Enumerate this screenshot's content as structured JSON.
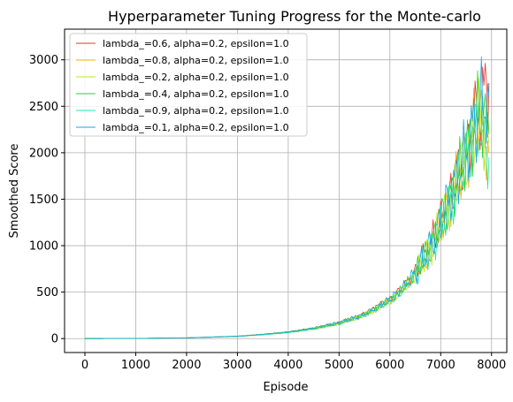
{
  "chart_data": {
    "type": "line",
    "title": "Hyperparameter Tuning Progress for the Monte-carlo",
    "xlabel": "Episode",
    "ylabel": "Smoothed Score",
    "xlim": [
      -400,
      8300
    ],
    "ylim": [
      -150,
      3330
    ],
    "xticks": [
      0,
      1000,
      2000,
      3000,
      4000,
      5000,
      6000,
      7000,
      8000
    ],
    "yticks": [
      0,
      500,
      1000,
      1500,
      2000,
      2500,
      3000
    ],
    "grid": true,
    "legend_position": "top-left",
    "x": [
      0,
      1000,
      2000,
      3000,
      3500,
      4000,
      4500,
      5000,
      5500,
      6000,
      6250,
      6500,
      6750,
      7000,
      7250,
      7500,
      7750,
      7950
    ],
    "series": [
      {
        "name": "lambda_=0.6, alpha=0.2, epsilon=1.0",
        "color": "#e3342a",
        "values": [
          0,
          2,
          8,
          25,
          45,
          70,
          110,
          170,
          260,
          420,
          540,
          720,
          950,
          1250,
          1600,
          2000,
          2450,
          2750
        ]
      },
      {
        "name": "lambda_=0.8, alpha=0.2, epsilon=1.0",
        "color": "#f5b400",
        "values": [
          0,
          2,
          8,
          24,
          44,
          68,
          108,
          165,
          255,
          410,
          530,
          700,
          930,
          1230,
          1580,
          1980,
          2400,
          2000
        ]
      },
      {
        "name": "lambda_=0.2, alpha=0.2, epsilon=1.0",
        "color": "#b9e81d",
        "values": [
          0,
          2,
          8,
          24,
          43,
          67,
          106,
          163,
          250,
          405,
          520,
          690,
          920,
          1210,
          1560,
          1950,
          2350,
          2100
        ]
      },
      {
        "name": "lambda_=0.4, alpha=0.2, epsilon=1.0",
        "color": "#22d42a",
        "values": [
          0,
          2,
          8,
          25,
          44,
          69,
          109,
          168,
          258,
          415,
          535,
          710,
          940,
          1240,
          1590,
          1990,
          2420,
          2200
        ]
      },
      {
        "name": "lambda_=0.9, alpha=0.2, epsilon=1.0",
        "color": "#1de8b0",
        "values": [
          0,
          2,
          7,
          23,
          42,
          66,
          104,
          160,
          248,
          400,
          515,
          680,
          905,
          1190,
          1540,
          1930,
          2330,
          1950
        ]
      },
      {
        "name": "lambda_=0.1, alpha=0.2, epsilon=1.0",
        "color": "#1aa3e8",
        "values": [
          0,
          2,
          8,
          25,
          45,
          70,
          112,
          172,
          262,
          425,
          545,
          725,
          955,
          1260,
          1620,
          2020,
          2460,
          2600
        ]
      }
    ]
  }
}
